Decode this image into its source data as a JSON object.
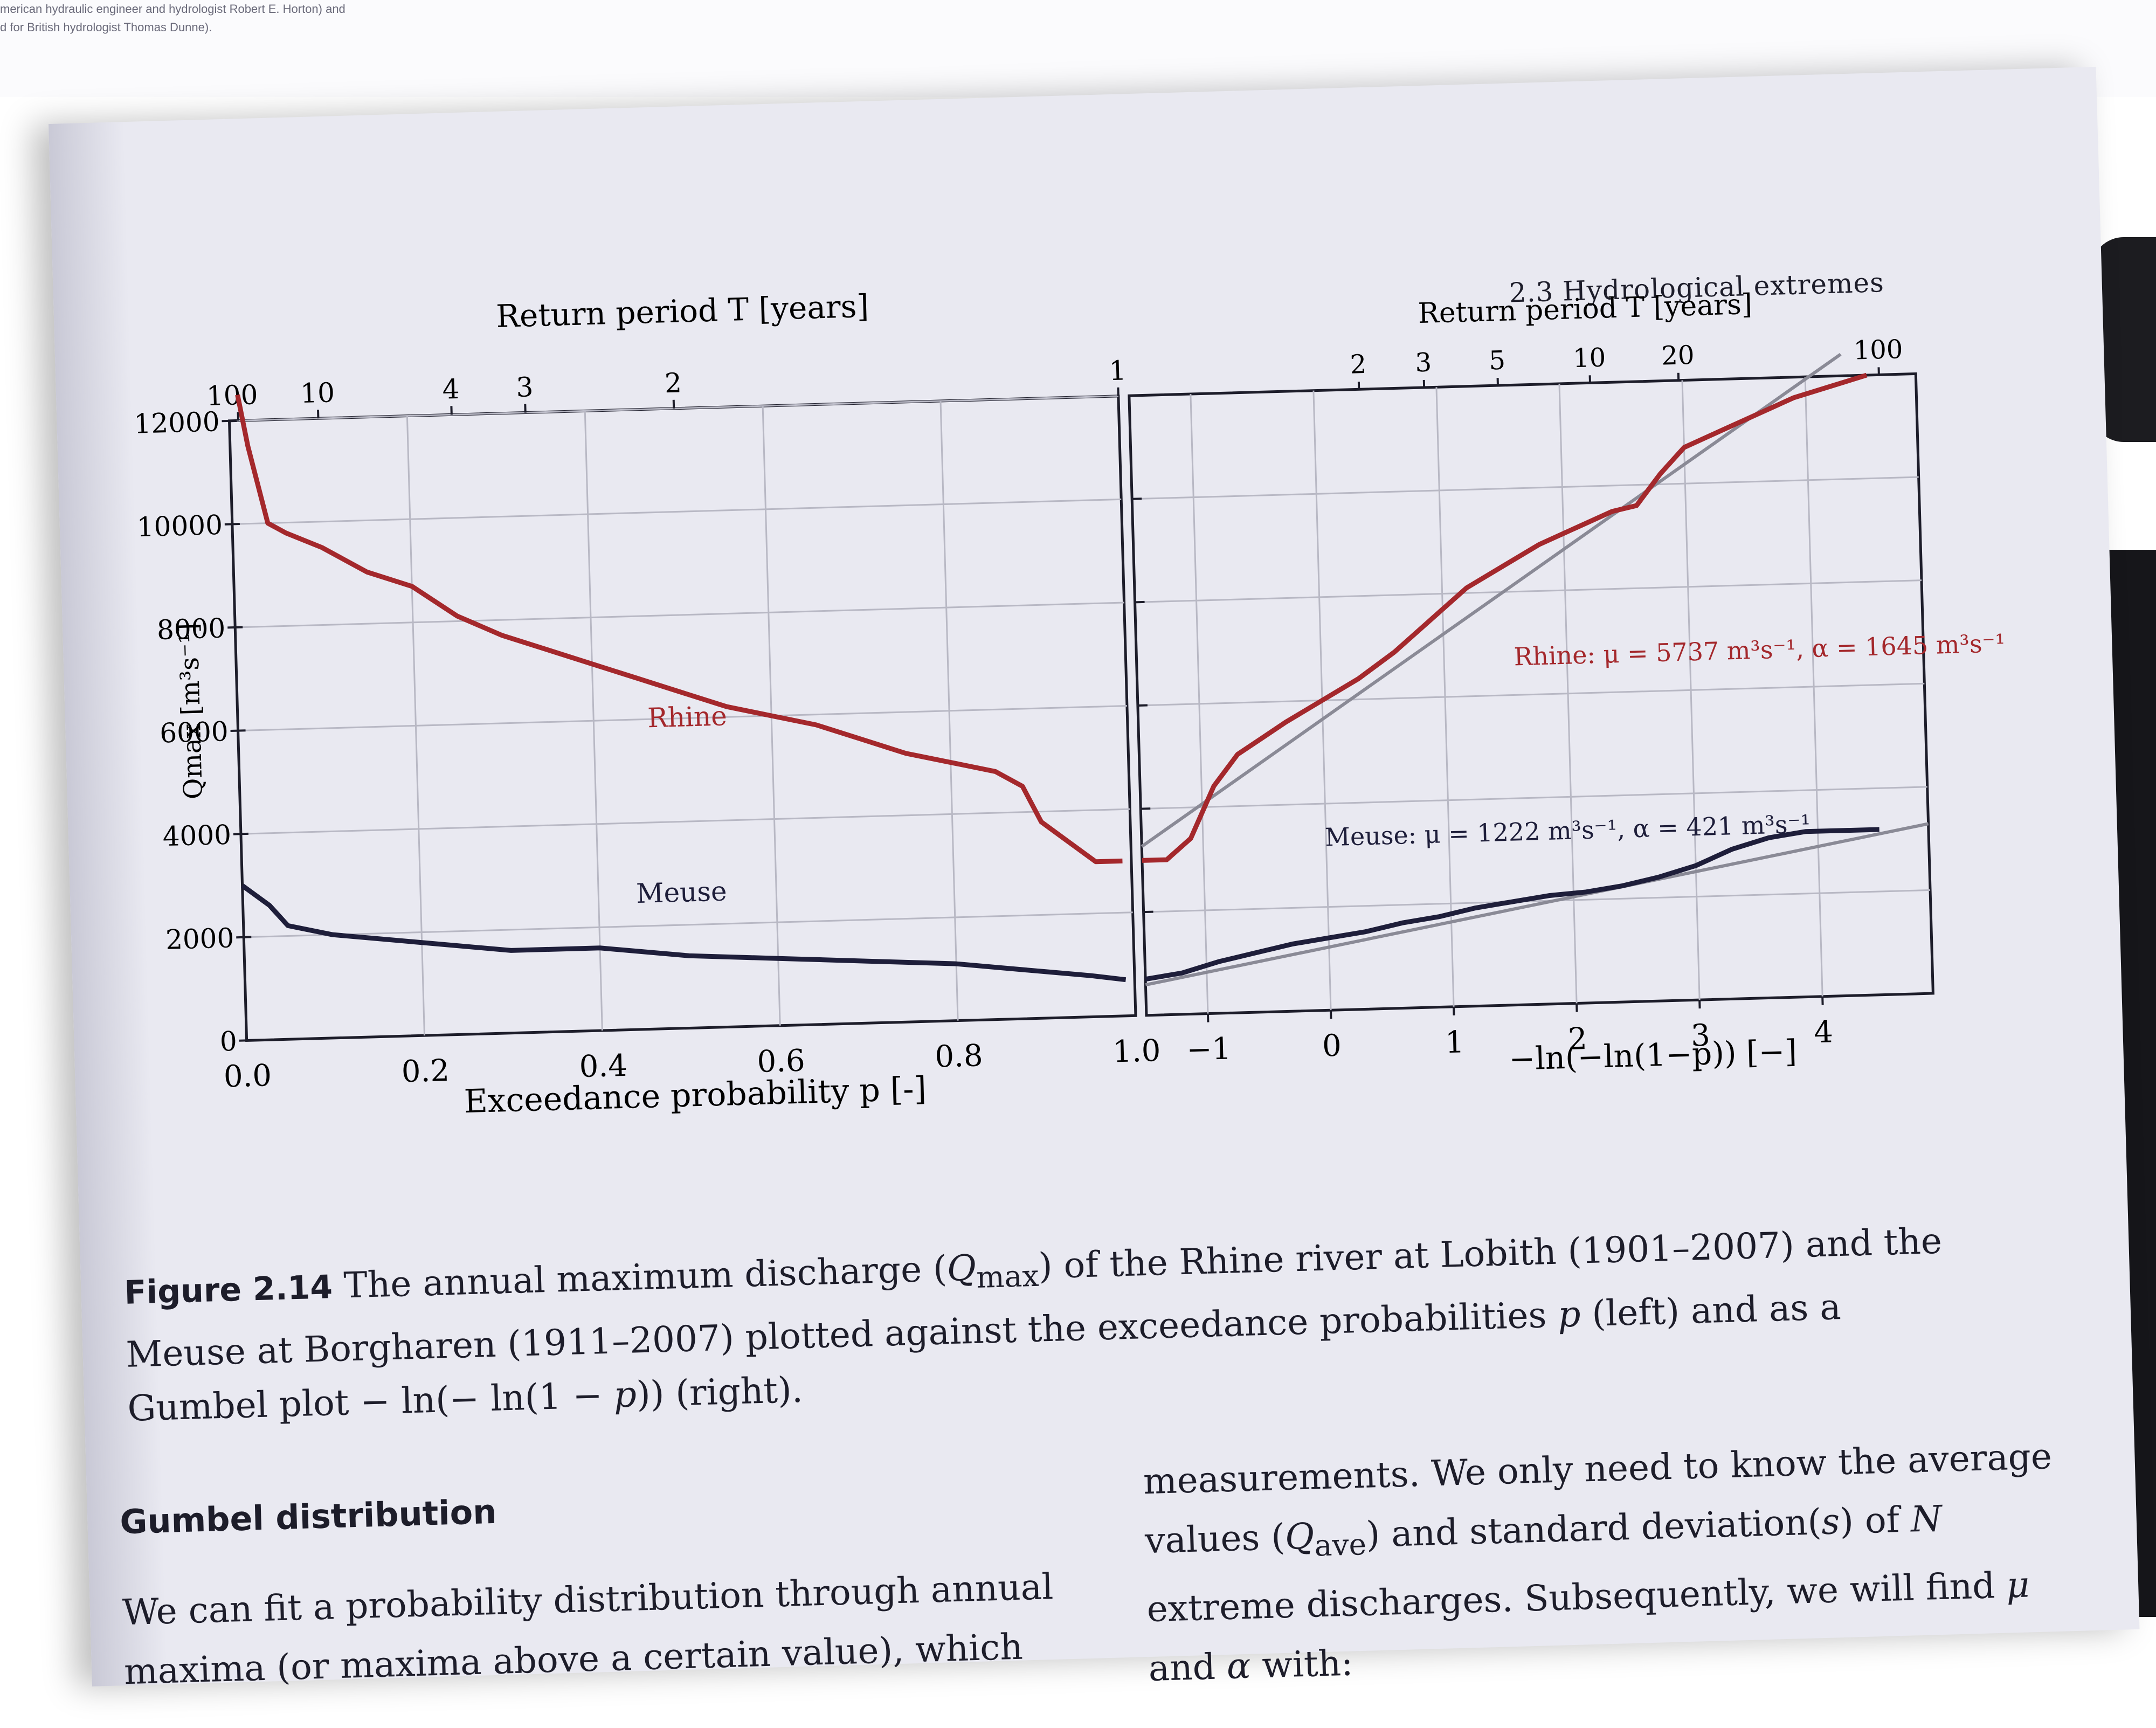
{
  "screen_text": {
    "line1": "merican hydraulic engineer and hydrologist Robert E. Horton) and",
    "line2": "d for British hydrologist Thomas Dunne)."
  },
  "header": "2.3 Hydrological extremes",
  "left_chart": {
    "top_axis_label": "Return period T [years]",
    "x_label": "Exceedance probability p [-]",
    "y_label": "Qmax [m³s⁻¹]",
    "x_ticks": [
      "0.0",
      "0.2",
      "0.4",
      "0.6",
      "0.8",
      "1.0"
    ],
    "y_ticks": [
      "0",
      "2000",
      "4000",
      "6000",
      "8000",
      "10000",
      "12000"
    ],
    "top_ticks": [
      "100",
      "10",
      "4",
      "3",
      "2",
      "1"
    ],
    "rhine_label": "Rhine",
    "meuse_label": "Meuse"
  },
  "right_chart": {
    "top_axis_label": "Return period T [years]",
    "x_label": "−ln(−ln(1−p)) [−]",
    "x_ticks": [
      "−1",
      "0",
      "1",
      "2",
      "3",
      "4"
    ],
    "top_ticks": [
      "2",
      "3",
      "5",
      "10",
      "20",
      "100"
    ],
    "rhine_fit_label": "Rhine: μ = 5737 m³s⁻¹, α = 1645 m³s⁻¹",
    "meuse_fit_label": "Meuse: μ = 1222 m³s⁻¹, α = 421 m³s⁻¹"
  },
  "colors": {
    "rhine": "#a4282c",
    "meuse": "#1e1e3a",
    "fit": "#8a8a96",
    "grid": "#b8b8c4"
  },
  "chart_data": [
    {
      "type": "line",
      "xlabel": "Exceedance probability p [-]",
      "ylabel": "Qmax [m³s⁻¹]",
      "xlim": [
        0,
        1
      ],
      "ylim": [
        0,
        12000
      ],
      "series": [
        {
          "name": "Rhine",
          "x": [
            0.01,
            0.02,
            0.04,
            0.06,
            0.1,
            0.15,
            0.2,
            0.25,
            0.3,
            0.35,
            0.4,
            0.45,
            0.5,
            0.55,
            0.6,
            0.65,
            0.7,
            0.75,
            0.8,
            0.85,
            0.88,
            0.9,
            0.93,
            0.96,
            0.99
          ],
          "y": [
            12500,
            11500,
            10000,
            9800,
            9500,
            9000,
            8700,
            8100,
            7700,
            7400,
            7100,
            6800,
            6500,
            6200,
            6000,
            5800,
            5500,
            5200,
            5000,
            4800,
            4500,
            3800,
            3400,
            3000,
            3000
          ]
        },
        {
          "name": "Meuse",
          "x": [
            0.0,
            0.03,
            0.05,
            0.1,
            0.2,
            0.3,
            0.4,
            0.45,
            0.5,
            0.6,
            0.7,
            0.8,
            0.85,
            0.9,
            0.95,
            0.99
          ],
          "y": [
            3000,
            2600,
            2200,
            2000,
            1800,
            1600,
            1600,
            1500,
            1400,
            1300,
            1200,
            1100,
            1000,
            900,
            800,
            700
          ]
        }
      ]
    },
    {
      "type": "line",
      "xlabel": "−ln(−ln(1−p)) [−]",
      "xlim": [
        -1.5,
        4.9
      ],
      "ylim": [
        0,
        12000
      ],
      "series": [
        {
          "name": "Rhine",
          "x": [
            -1.5,
            -1.3,
            -1.1,
            -0.9,
            -0.7,
            -0.5,
            -0.3,
            0,
            0.3,
            0.6,
            0.9,
            1.2,
            1.5,
            1.8,
            2.1,
            2.4,
            2.6,
            2.8,
            3.0,
            3.3,
            3.6,
            3.9,
            4.2,
            4.5
          ],
          "y": [
            3000,
            3000,
            3400,
            4400,
            5000,
            5300,
            5600,
            6000,
            6400,
            6900,
            7500,
            8100,
            8500,
            8900,
            9200,
            9500,
            9600,
            10200,
            10700,
            11000,
            11300,
            11600,
            11800,
            12000
          ]
        },
        {
          "name": "Meuse",
          "x": [
            -1.5,
            -1.2,
            -0.9,
            -0.6,
            -0.3,
            0,
            0.3,
            0.6,
            0.9,
            1.2,
            1.5,
            1.8,
            2.1,
            2.4,
            2.7,
            3.0,
            3.3,
            3.6,
            3.9,
            4.2,
            4.5
          ],
          "y": [
            700,
            800,
            1000,
            1150,
            1300,
            1400,
            1500,
            1650,
            1750,
            1900,
            2000,
            2100,
            2150,
            2250,
            2400,
            2600,
            2900,
            3100,
            3200,
            3200,
            3200
          ]
        }
      ]
    }
  ]
}
